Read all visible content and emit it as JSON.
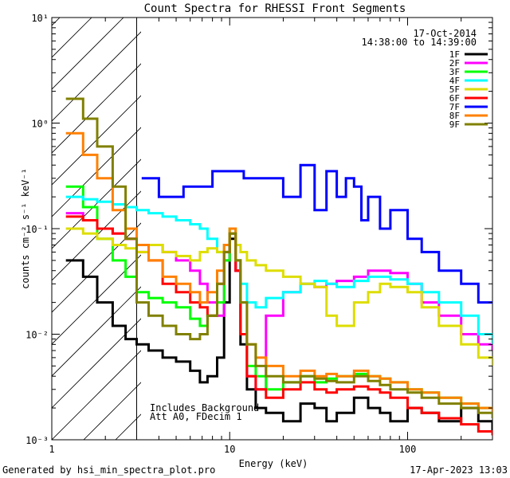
{
  "chart_data": {
    "type": "line",
    "title": "Count Spectra for RHESSI Front Segments",
    "xlabel": "Energy (keV)",
    "ylabel": "counts cm⁻² s⁻¹ keV⁻¹",
    "xscale": "log",
    "yscale": "log",
    "xlim": [
      1,
      300
    ],
    "ylim": [
      0.001,
      10
    ],
    "x_ticks": [
      {
        "value": 1,
        "label": "1"
      },
      {
        "value": 10,
        "label": "10"
      },
      {
        "value": 100,
        "label": "100"
      }
    ],
    "y_ticks": [
      {
        "value": 0.001,
        "label": "10⁻³"
      },
      {
        "value": 0.01,
        "label": "10⁻²"
      },
      {
        "value": 0.1,
        "label": "10⁻¹"
      },
      {
        "value": 1,
        "label": "10⁰"
      },
      {
        "value": 10,
        "label": "10¹"
      }
    ],
    "date": "17-Oct-2014",
    "time_range": "14:38:00 to 14:39:00",
    "annotations": [
      "Includes Background",
      "Att A0, FDecim 1"
    ],
    "shaded_region_xmax": 3,
    "series": [
      {
        "name": "1F",
        "color": "#000000",
        "x": [
          1.2,
          1.5,
          1.8,
          2.2,
          2.6,
          3.0,
          3.5,
          4.2,
          5.0,
          6.0,
          6.8,
          7.5,
          8.5,
          9.3,
          10.0,
          10.8,
          11.5,
          12.5,
          14.0,
          16,
          20,
          25,
          30,
          35,
          40,
          50,
          60,
          70,
          80,
          100,
          120,
          150,
          200,
          250,
          300
        ],
        "y": [
          0.05,
          0.035,
          0.02,
          0.012,
          0.009,
          0.008,
          0.007,
          0.006,
          0.0055,
          0.0045,
          0.0035,
          0.004,
          0.006,
          0.02,
          0.08,
          0.04,
          0.008,
          0.003,
          0.002,
          0.0018,
          0.0015,
          0.0022,
          0.002,
          0.0015,
          0.0018,
          0.0025,
          0.002,
          0.0018,
          0.0015,
          0.002,
          0.0018,
          0.0015,
          0.002,
          0.0015,
          0.0012
        ]
      },
      {
        "name": "2F",
        "color": "#ff00ff",
        "x": [
          1.2,
          1.5,
          1.8,
          2.2,
          2.6,
          3.0,
          3.5,
          4.2,
          5.0,
          6.0,
          6.8,
          7.5,
          8.5,
          9.3,
          10.0,
          10.8,
          11.5,
          12.5,
          14.0,
          16,
          20,
          25,
          30,
          35,
          40,
          50,
          60,
          70,
          80,
          100,
          120,
          150,
          200,
          250,
          300
        ],
        "y": [
          0.14,
          0.12,
          0.1,
          0.09,
          0.08,
          0.06,
          0.07,
          0.06,
          0.05,
          0.04,
          0.03,
          0.02,
          0.015,
          0.05,
          0.09,
          0.04,
          0.01,
          0.004,
          0.003,
          0.015,
          0.025,
          0.03,
          0.028,
          0.03,
          0.032,
          0.035,
          0.04,
          0.04,
          0.038,
          0.03,
          0.02,
          0.015,
          0.01,
          0.008,
          0.007
        ]
      },
      {
        "name": "3F",
        "color": "#00ff00",
        "x": [
          1.2,
          1.5,
          1.8,
          2.2,
          2.6,
          3.0,
          3.5,
          4.2,
          5.0,
          6.0,
          6.8,
          7.5,
          8.5,
          9.3,
          10.0,
          10.8,
          11.5,
          12.5,
          14.0,
          16,
          20,
          25,
          30,
          35,
          40,
          50,
          60,
          70,
          80,
          100,
          120,
          150,
          200,
          250,
          300
        ],
        "y": [
          0.25,
          0.16,
          0.08,
          0.05,
          0.035,
          0.025,
          0.022,
          0.02,
          0.018,
          0.014,
          0.012,
          0.015,
          0.02,
          0.05,
          0.1,
          0.05,
          0.01,
          0.005,
          0.004,
          0.003,
          0.0035,
          0.004,
          0.0035,
          0.0038,
          0.004,
          0.0042,
          0.004,
          0.0038,
          0.0035,
          0.003,
          0.0028,
          0.0025,
          0.0022,
          0.002,
          0.0018
        ]
      },
      {
        "name": "4F",
        "color": "#00ffff",
        "x": [
          1.2,
          1.5,
          1.8,
          2.2,
          2.6,
          3.0,
          3.5,
          4.2,
          5.0,
          6.0,
          6.8,
          7.5,
          8.5,
          9.3,
          10.0,
          10.8,
          11.5,
          12.5,
          14.0,
          16,
          20,
          25,
          30,
          35,
          40,
          50,
          60,
          70,
          80,
          100,
          120,
          150,
          200,
          250,
          300
        ],
        "y": [
          0.2,
          0.19,
          0.18,
          0.17,
          0.16,
          0.15,
          0.14,
          0.13,
          0.12,
          0.11,
          0.1,
          0.08,
          0.06,
          0.07,
          0.09,
          0.05,
          0.03,
          0.02,
          0.018,
          0.022,
          0.025,
          0.03,
          0.032,
          0.03,
          0.028,
          0.032,
          0.035,
          0.035,
          0.033,
          0.03,
          0.025,
          0.02,
          0.015,
          0.01,
          0.008
        ]
      },
      {
        "name": "5F",
        "color": "#dddd00",
        "x": [
          1.2,
          1.5,
          1.8,
          2.2,
          2.6,
          3.0,
          3.5,
          4.2,
          5.0,
          6.0,
          6.8,
          7.5,
          8.5,
          9.3,
          10.0,
          10.8,
          11.5,
          12.5,
          14.0,
          16,
          20,
          25,
          30,
          35,
          40,
          50,
          60,
          70,
          80,
          100,
          120,
          150,
          200,
          250,
          300
        ],
        "y": [
          0.1,
          0.09,
          0.08,
          0.07,
          0.065,
          0.06,
          0.07,
          0.06,
          0.055,
          0.05,
          0.06,
          0.065,
          0.06,
          0.07,
          0.09,
          0.07,
          0.06,
          0.05,
          0.045,
          0.04,
          0.035,
          0.03,
          0.028,
          0.015,
          0.012,
          0.02,
          0.025,
          0.03,
          0.028,
          0.025,
          0.018,
          0.012,
          0.008,
          0.006,
          0.005
        ]
      },
      {
        "name": "6F",
        "color": "#ff0000",
        "x": [
          1.2,
          1.5,
          1.8,
          2.2,
          2.6,
          3.0,
          3.5,
          4.2,
          5.0,
          6.0,
          6.8,
          7.5,
          8.5,
          9.3,
          10.0,
          10.8,
          11.5,
          12.5,
          14.0,
          16,
          20,
          25,
          30,
          35,
          40,
          50,
          60,
          70,
          80,
          100,
          120,
          150,
          200,
          250,
          300
        ],
        "y": [
          0.13,
          0.12,
          0.1,
          0.09,
          0.08,
          0.07,
          0.05,
          0.03,
          0.025,
          0.02,
          0.018,
          0.015,
          0.03,
          0.06,
          0.09,
          0.04,
          0.01,
          0.004,
          0.003,
          0.0025,
          0.003,
          0.0035,
          0.003,
          0.0028,
          0.003,
          0.0032,
          0.003,
          0.0028,
          0.0025,
          0.002,
          0.0018,
          0.0016,
          0.0014,
          0.0012,
          0.0011
        ]
      },
      {
        "name": "7F",
        "color": "#0000ff",
        "x": [
          3.2,
          4.0,
          5.5,
          8.0,
          12,
          17,
          20,
          25,
          30,
          35,
          40,
          45,
          50,
          55,
          60,
          70,
          80,
          100,
          120,
          150,
          200,
          250,
          300
        ],
        "y": [
          0.3,
          0.2,
          0.25,
          0.35,
          0.3,
          0.3,
          0.2,
          0.4,
          0.15,
          0.35,
          0.2,
          0.3,
          0.25,
          0.12,
          0.2,
          0.1,
          0.15,
          0.08,
          0.06,
          0.04,
          0.03,
          0.02,
          0.02
        ]
      },
      {
        "name": "8F",
        "color": "#ff8000",
        "x": [
          1.2,
          1.5,
          1.8,
          2.2,
          2.6,
          3.0,
          3.5,
          4.2,
          5.0,
          6.0,
          6.8,
          7.5,
          8.5,
          9.3,
          10.0,
          10.8,
          11.5,
          12.5,
          14.0,
          16,
          20,
          25,
          30,
          35,
          40,
          50,
          60,
          70,
          80,
          100,
          120,
          150,
          200,
          250,
          300
        ],
        "y": [
          0.8,
          0.5,
          0.3,
          0.15,
          0.1,
          0.07,
          0.05,
          0.035,
          0.03,
          0.025,
          0.02,
          0.025,
          0.04,
          0.07,
          0.1,
          0.05,
          0.02,
          0.008,
          0.006,
          0.005,
          0.004,
          0.0045,
          0.004,
          0.0042,
          0.004,
          0.0045,
          0.004,
          0.0038,
          0.0035,
          0.003,
          0.0028,
          0.0025,
          0.0022,
          0.002,
          0.0018
        ]
      },
      {
        "name": "9F",
        "color": "#808000",
        "x": [
          1.2,
          1.5,
          1.8,
          2.2,
          2.6,
          3.0,
          3.5,
          4.2,
          5.0,
          6.0,
          6.8,
          7.5,
          8.5,
          9.3,
          10.0,
          10.8,
          11.5,
          12.5,
          14.0,
          16,
          20,
          25,
          30,
          35,
          40,
          50,
          60,
          70,
          80,
          100,
          120,
          150,
          200,
          250,
          300
        ],
        "y": [
          1.7,
          1.1,
          0.6,
          0.25,
          0.08,
          0.02,
          0.015,
          0.012,
          0.01,
          0.009,
          0.01,
          0.015,
          0.03,
          0.06,
          0.09,
          0.05,
          0.02,
          0.008,
          0.005,
          0.004,
          0.0035,
          0.004,
          0.0038,
          0.0036,
          0.0035,
          0.004,
          0.0036,
          0.0033,
          0.003,
          0.0028,
          0.0025,
          0.0022,
          0.002,
          0.0018,
          0.0016
        ]
      }
    ]
  },
  "footer": {
    "generated_by": "Generated by hsi_min_spectra_plot.pro",
    "timestamp": "17-Apr-2023 13:03"
  }
}
